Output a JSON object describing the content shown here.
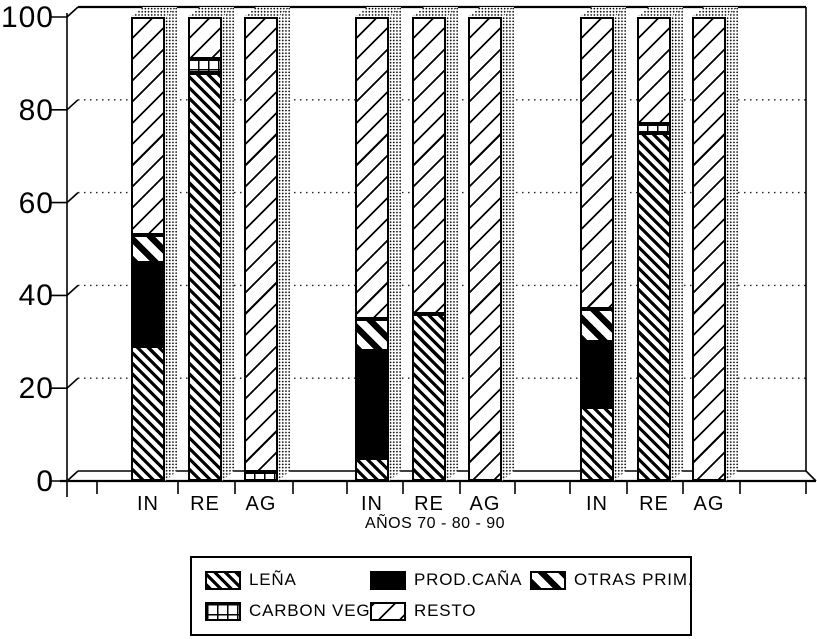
{
  "chart_data": {
    "type": "bar",
    "stacked": true,
    "percent_scale": true,
    "title": "",
    "xlabel": "AÑOS 70 - 80 - 90",
    "ylabel": "",
    "ylim": [
      0,
      100
    ],
    "yticks": [
      0,
      20,
      40,
      60,
      80,
      100
    ],
    "grid": "dotted horizontal gridlines at 20, 40, 60, 80; solid at 100",
    "legend_position": "boxed, below chart",
    "style": "black-and-white hatched pseudo-3D stacked bars (scanned chart)",
    "groups": [
      "70",
      "80",
      "90"
    ],
    "categories": [
      "IN",
      "RE",
      "AG"
    ],
    "x": [
      "70 IN",
      "70 RE",
      "70 AG",
      "80 IN",
      "80 RE",
      "80 AG",
      "90 IN",
      "90 RE",
      "90 AG"
    ],
    "series": [
      {
        "name": "LEÑA",
        "pattern": "dense-diagonal",
        "values": [
          29,
          88,
          0,
          5,
          36,
          0,
          16,
          75,
          0
        ]
      },
      {
        "name": "PROD.CAÑA",
        "pattern": "solid-black",
        "values": [
          18,
          0,
          0,
          23,
          0,
          0,
          14,
          0,
          0
        ]
      },
      {
        "name": "OTRAS PRIM.",
        "pattern": "bold-diagonal",
        "values": [
          6,
          0,
          0,
          7,
          0,
          0,
          7,
          0,
          0
        ]
      },
      {
        "name": "CARBON VEG.",
        "pattern": "grid",
        "values": [
          0,
          3,
          2,
          0,
          0,
          0,
          0,
          2,
          0
        ]
      },
      {
        "name": "RESTO",
        "pattern": "light-diagonal",
        "values": [
          47,
          9,
          98,
          65,
          64,
          100,
          63,
          23,
          100
        ]
      }
    ],
    "legend": [
      {
        "label": "LEÑA",
        "pattern": "dense-diagonal"
      },
      {
        "label": "PROD.CAÑA",
        "pattern": "solid-black"
      },
      {
        "label": "OTRAS PRIM.",
        "pattern": "bold-diagonal"
      },
      {
        "label": "CARBON VEG.",
        "pattern": "grid"
      },
      {
        "label": "RESTO",
        "pattern": "light-diagonal"
      }
    ]
  },
  "colors": {
    "ink": "#000000",
    "paper": "#ffffff"
  }
}
